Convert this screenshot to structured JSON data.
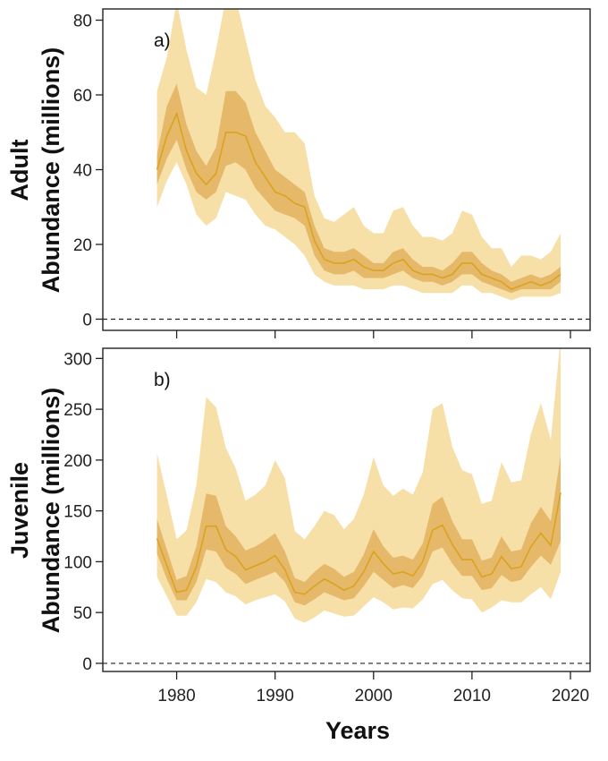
{
  "colors": {
    "outer_band": "#f7dfa8",
    "inner_band": "#e6b96a",
    "median_line": "#d9a31e",
    "axis": "#222222"
  },
  "xlabel": "Years",
  "chart_data": [
    {
      "type": "area",
      "panel_label": "a)",
      "ylabel_lines": [
        "Adult",
        "Abundance (millions)"
      ],
      "x": [
        1978,
        1979,
        1980,
        1981,
        1982,
        1983,
        1984,
        1985,
        1986,
        1987,
        1988,
        1989,
        1990,
        1991,
        1992,
        1993,
        1994,
        1995,
        1996,
        1997,
        1998,
        1999,
        2000,
        2001,
        2002,
        2003,
        2004,
        2005,
        2006,
        2007,
        2008,
        2009,
        2010,
        2011,
        2012,
        2013,
        2014,
        2015,
        2016,
        2017,
        2018,
        2019
      ],
      "median": [
        40,
        49,
        55,
        45,
        39,
        36,
        39,
        50,
        50,
        49,
        42,
        38,
        34,
        33,
        31,
        30,
        21,
        16,
        15,
        15,
        16,
        14,
        13,
        13,
        15,
        16,
        13,
        12,
        12,
        11,
        12,
        15,
        15,
        12,
        11,
        10,
        8,
        9,
        10,
        9,
        10,
        12
      ],
      "inner_lower": [
        36,
        43,
        48,
        40,
        34,
        32,
        34,
        41,
        42,
        40,
        35,
        32,
        29,
        28,
        27,
        25,
        17,
        13,
        12,
        12,
        13,
        11,
        11,
        11,
        12,
        13,
        11,
        10,
        10,
        9,
        10,
        12,
        12,
        10,
        9,
        8,
        7,
        8,
        8,
        8,
        8,
        10
      ],
      "inner_upper": [
        44,
        57,
        63,
        52,
        45,
        41,
        46,
        61,
        61,
        58,
        50,
        45,
        40,
        38,
        36,
        34,
        25,
        19,
        18,
        18,
        19,
        17,
        15,
        15,
        18,
        19,
        16,
        14,
        14,
        13,
        15,
        18,
        18,
        15,
        13,
        12,
        10,
        11,
        12,
        11,
        12,
        14
      ],
      "outer_lower": [
        30,
        37,
        42,
        36,
        28,
        25,
        27,
        34,
        33,
        32,
        28,
        25,
        24,
        22,
        20,
        17,
        12,
        10,
        9,
        9,
        9,
        8,
        8,
        8,
        9,
        9,
        8,
        7,
        7,
        7,
        7,
        9,
        9,
        7,
        7,
        6,
        5,
        6,
        6,
        6,
        6,
        7
      ],
      "outer_upper": [
        61,
        70,
        85,
        72,
        62,
        60,
        72,
        86,
        86,
        75,
        64,
        57,
        54,
        50,
        50,
        47,
        33,
        27,
        26,
        28,
        30,
        25,
        23,
        23,
        29,
        30,
        25,
        22,
        22,
        21,
        23,
        29,
        28,
        22,
        19,
        19,
        14,
        17,
        17,
        16,
        18,
        23
      ],
      "ylim": [
        -3,
        83
      ],
      "yticks": [
        0,
        20,
        40,
        60,
        80
      ]
    },
    {
      "type": "area",
      "panel_label": "b)",
      "ylabel_lines": [
        "Juvenile",
        "Abundance (millions)"
      ],
      "x": [
        1978,
        1979,
        1980,
        1981,
        1982,
        1983,
        1984,
        1985,
        1986,
        1987,
        1988,
        1989,
        1990,
        1991,
        1992,
        1993,
        1994,
        1995,
        1996,
        1997,
        1998,
        1999,
        2000,
        2001,
        2002,
        2003,
        2004,
        2005,
        2006,
        2007,
        2008,
        2009,
        2010,
        2011,
        2012,
        2013,
        2014,
        2015,
        2016,
        2017,
        2018,
        2019
      ],
      "median": [
        123,
        96,
        70,
        72,
        95,
        135,
        135,
        112,
        105,
        92,
        96,
        100,
        106,
        92,
        70,
        68,
        76,
        83,
        78,
        72,
        76,
        90,
        110,
        98,
        88,
        90,
        86,
        100,
        131,
        136,
        117,
        102,
        102,
        85,
        88,
        105,
        93,
        95,
        115,
        128,
        116,
        168
      ],
      "inner_lower": [
        108,
        83,
        62,
        62,
        80,
        112,
        110,
        94,
        88,
        78,
        82,
        86,
        90,
        80,
        60,
        57,
        63,
        70,
        66,
        62,
        64,
        76,
        90,
        82,
        74,
        77,
        74,
        86,
        110,
        114,
        98,
        86,
        86,
        72,
        74,
        87,
        80,
        82,
        95,
        106,
        97,
        120
      ],
      "inner_upper": [
        142,
        112,
        82,
        86,
        115,
        167,
        165,
        135,
        125,
        111,
        115,
        121,
        128,
        110,
        84,
        80,
        90,
        98,
        93,
        85,
        90,
        107,
        132,
        115,
        104,
        106,
        102,
        118,
        157,
        164,
        140,
        122,
        122,
        101,
        104,
        125,
        110,
        112,
        138,
        154,
        140,
        205
      ],
      "outer_lower": [
        85,
        66,
        47,
        47,
        60,
        83,
        80,
        70,
        66,
        58,
        62,
        65,
        68,
        61,
        44,
        40,
        45,
        52,
        49,
        46,
        47,
        56,
        65,
        60,
        53,
        55,
        54,
        63,
        78,
        82,
        72,
        64,
        63,
        50,
        55,
        62,
        60,
        60,
        68,
        75,
        63,
        90
      ],
      "outer_upper": [
        207,
        165,
        122,
        131,
        175,
        262,
        252,
        212,
        192,
        160,
        166,
        175,
        200,
        182,
        130,
        122,
        135,
        150,
        146,
        132,
        142,
        166,
        203,
        175,
        165,
        172,
        166,
        188,
        250,
        256,
        213,
        190,
        186,
        157,
        160,
        198,
        178,
        180,
        226,
        256,
        220,
        320
      ],
      "ylim": [
        -8,
        310
      ],
      "yticks": [
        0,
        50,
        100,
        150,
        200,
        250,
        300
      ]
    }
  ],
  "xaxis": {
    "xlim": [
      1972.5,
      2022
    ],
    "ticks": [
      1980,
      1990,
      2000,
      2010,
      2020
    ]
  }
}
